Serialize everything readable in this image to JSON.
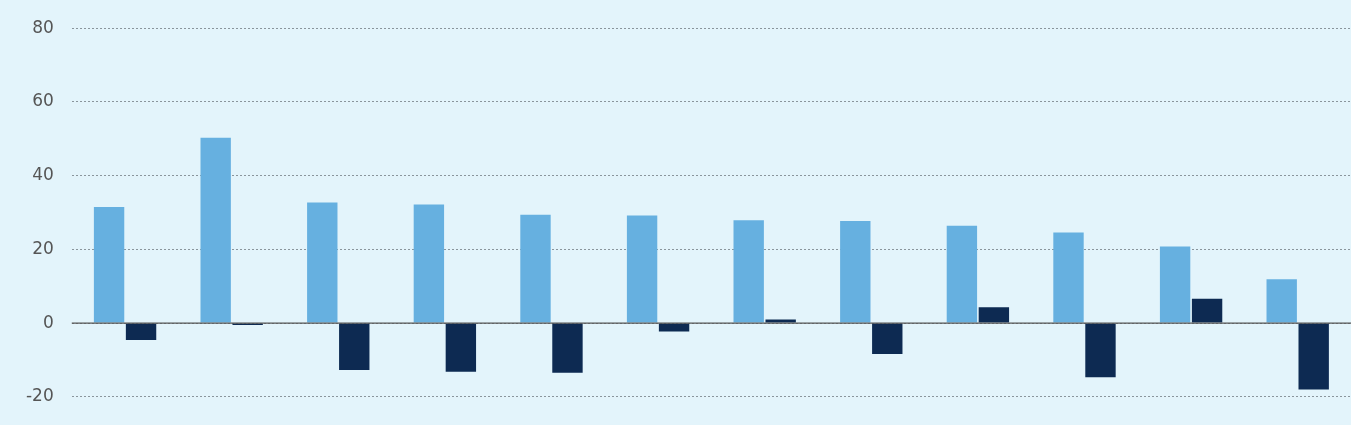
{
  "chart_data": {
    "type": "bar",
    "categories": [
      null,
      null,
      null,
      null,
      null,
      null,
      null,
      null,
      null,
      null,
      null,
      null
    ],
    "series": [
      {
        "color": "#66b0e0",
        "values": [
          31.5,
          50.3,
          32.7,
          32.2,
          29.4,
          29.2,
          27.9,
          27.7,
          26.4,
          24.6,
          20.8,
          11.9
        ]
      },
      {
        "color": "#0d2a52",
        "values": [
          -4.6,
          -0.5,
          -12.7,
          -13.2,
          -13.5,
          -2.3,
          1.0,
          -8.4,
          4.3,
          -14.7,
          6.6,
          -18.0
        ]
      }
    ],
    "ylim": [
      -20,
      80
    ],
    "yticks": [
      -20,
      0,
      20,
      40,
      60,
      80
    ],
    "grid": "y",
    "tick_labels": "y",
    "ref_lines": [
      {
        "axis": "y",
        "value": 0,
        "color": "#555555"
      }
    ]
  }
}
